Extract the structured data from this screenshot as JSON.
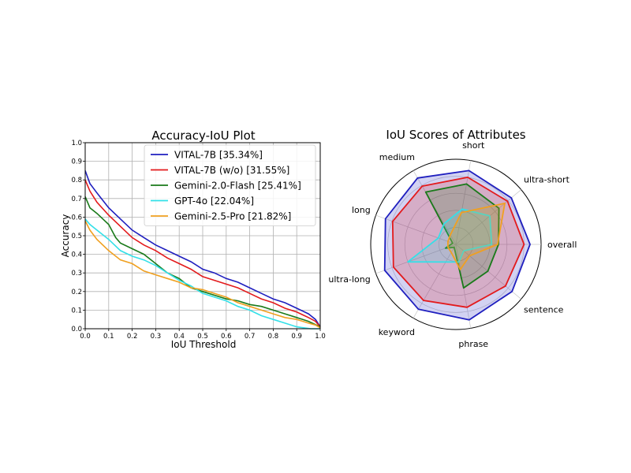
{
  "chart_data": [
    {
      "type": "line",
      "title": "Accuracy-IoU Plot",
      "xlabel": "IoU Threshold",
      "ylabel": "Accuracy",
      "xlim": [
        0,
        1
      ],
      "ylim": [
        0,
        1
      ],
      "x_ticks": [
        "0.0",
        "0.1",
        "0.2",
        "0.3",
        "0.4",
        "0.5",
        "0.6",
        "0.7",
        "0.8",
        "0.9",
        "1.0"
      ],
      "y_ticks": [
        "0.0",
        "0.1",
        "0.2",
        "0.3",
        "0.4",
        "0.5",
        "0.6",
        "0.7",
        "0.8",
        "0.9",
        "1.0"
      ],
      "grid": true,
      "legend_position": "top-right",
      "series": [
        {
          "name": "VITAL-7B [35.34%]",
          "color": "#1f1fbf",
          "x": [
            0.0,
            0.02,
            0.05,
            0.1,
            0.15,
            0.2,
            0.25,
            0.3,
            0.35,
            0.4,
            0.45,
            0.5,
            0.55,
            0.6,
            0.65,
            0.7,
            0.75,
            0.8,
            0.85,
            0.9,
            0.95,
            0.98,
            1.0
          ],
          "y": [
            0.85,
            0.78,
            0.73,
            0.65,
            0.59,
            0.53,
            0.49,
            0.45,
            0.42,
            0.39,
            0.36,
            0.32,
            0.3,
            0.27,
            0.25,
            0.22,
            0.19,
            0.16,
            0.14,
            0.11,
            0.08,
            0.05,
            0.01
          ]
        },
        {
          "name": "VITAL-7B (w/o) [31.55%]",
          "color": "#e31a1c",
          "x": [
            0.0,
            0.02,
            0.05,
            0.1,
            0.15,
            0.2,
            0.25,
            0.3,
            0.35,
            0.4,
            0.45,
            0.5,
            0.55,
            0.6,
            0.65,
            0.7,
            0.75,
            0.8,
            0.85,
            0.9,
            0.95,
            0.98,
            1.0
          ],
          "y": [
            0.8,
            0.74,
            0.68,
            0.61,
            0.55,
            0.49,
            0.45,
            0.42,
            0.38,
            0.35,
            0.32,
            0.28,
            0.26,
            0.24,
            0.22,
            0.19,
            0.16,
            0.14,
            0.11,
            0.09,
            0.06,
            0.04,
            0.01
          ]
        },
        {
          "name": "Gemini-2.0-Flash [25.41%]",
          "color": "#1a7a1a",
          "x": [
            0.0,
            0.02,
            0.05,
            0.1,
            0.13,
            0.15,
            0.2,
            0.25,
            0.3,
            0.35,
            0.4,
            0.45,
            0.5,
            0.55,
            0.6,
            0.65,
            0.7,
            0.75,
            0.8,
            0.85,
            0.9,
            0.95,
            1.0
          ],
          "y": [
            0.71,
            0.65,
            0.62,
            0.56,
            0.49,
            0.46,
            0.43,
            0.4,
            0.35,
            0.3,
            0.27,
            0.22,
            0.2,
            0.18,
            0.16,
            0.15,
            0.13,
            0.12,
            0.1,
            0.08,
            0.06,
            0.04,
            0.01
          ]
        },
        {
          "name": "GPT-4o [22.04%]",
          "color": "#33e0e8",
          "x": [
            0.0,
            0.02,
            0.05,
            0.1,
            0.15,
            0.2,
            0.25,
            0.3,
            0.35,
            0.4,
            0.45,
            0.5,
            0.55,
            0.6,
            0.65,
            0.7,
            0.75,
            0.8,
            0.85,
            0.9,
            0.93,
            0.96,
            1.0
          ],
          "y": [
            0.59,
            0.56,
            0.53,
            0.48,
            0.42,
            0.39,
            0.37,
            0.34,
            0.3,
            0.26,
            0.23,
            0.19,
            0.17,
            0.15,
            0.12,
            0.1,
            0.07,
            0.05,
            0.03,
            0.01,
            0.005,
            0.0,
            0.0
          ]
        },
        {
          "name": "Gemini-2.5-Pro [21.82%]",
          "color": "#f0a020",
          "x": [
            0.0,
            0.02,
            0.05,
            0.1,
            0.15,
            0.2,
            0.25,
            0.3,
            0.35,
            0.4,
            0.45,
            0.5,
            0.55,
            0.6,
            0.65,
            0.7,
            0.75,
            0.8,
            0.85,
            0.9,
            0.95,
            0.98,
            1.0
          ],
          "y": [
            0.58,
            0.53,
            0.48,
            0.42,
            0.37,
            0.35,
            0.31,
            0.29,
            0.27,
            0.25,
            0.22,
            0.21,
            0.19,
            0.17,
            0.14,
            0.12,
            0.1,
            0.08,
            0.06,
            0.05,
            0.03,
            0.02,
            0.005
          ]
        }
      ]
    },
    {
      "type": "radar",
      "title": "IoU Scores of Attributes",
      "axes": [
        "overall",
        "ultra-short",
        "short",
        "medium",
        "long",
        "ultra-long",
        "keyword",
        "phrase",
        "sentence"
      ],
      "radial_max": 1.0,
      "series": [
        {
          "name": "VITAL-7B",
          "color": "#1f1fbf",
          "values": [
            0.87,
            0.85,
            0.88,
            0.9,
            0.88,
            0.89,
            0.88,
            0.9,
            0.86
          ]
        },
        {
          "name": "VITAL-7B (w/o)",
          "color": "#e31a1c",
          "values": [
            0.8,
            0.79,
            0.8,
            0.79,
            0.79,
            0.78,
            0.76,
            0.75,
            0.76
          ]
        },
        {
          "name": "Gemini-2.0-Flash",
          "color": "#1a7a1a",
          "values": [
            0.5,
            0.66,
            0.72,
            0.71,
            0.04,
            0.13,
            0.04,
            0.52,
            0.49
          ]
        },
        {
          "name": "GPT-4o",
          "color": "#33e0e8",
          "values": [
            0.42,
            0.52,
            0.42,
            0.28,
            0.22,
            0.6,
            0.24,
            0.21,
            0.12
          ]
        },
        {
          "name": "Gemini-2.5-Pro",
          "color": "#f0a020",
          "values": [
            0.49,
            0.75,
            0.38,
            0.13,
            0.1,
            0.1,
            0.11,
            0.3,
            0.21
          ]
        }
      ]
    }
  ]
}
